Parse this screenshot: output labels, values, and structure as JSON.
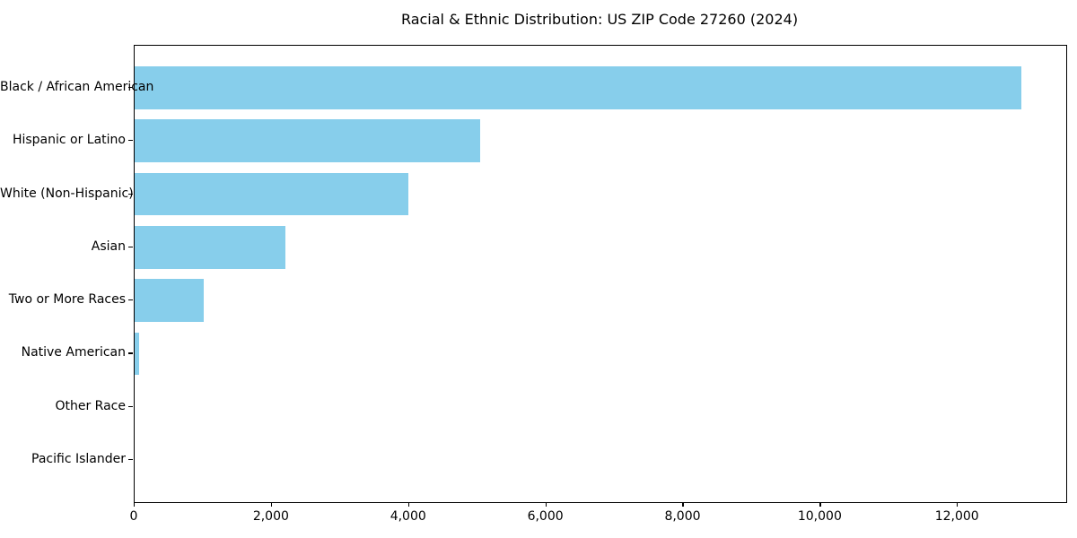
{
  "title": "Racial & Ethnic Distribution: US ZIP Code 27260 (2024)",
  "chart_data": {
    "type": "bar",
    "orientation": "horizontal",
    "title": "Racial & Ethnic Distribution: US ZIP Code 27260 (2024)",
    "xlabel": "",
    "ylabel": "",
    "categories": [
      "Black / African American",
      "Hispanic or Latino",
      "White (Non-Hispanic)",
      "Asian",
      "Two or More Races",
      "Native American",
      "Other Race",
      "Pacific Islander"
    ],
    "values": [
      12930,
      5040,
      3985,
      2200,
      1010,
      65,
      0,
      0
    ],
    "xlim": [
      0,
      13580
    ],
    "x_ticks": [
      0,
      2000,
      4000,
      6000,
      8000,
      10000,
      12000
    ],
    "x_tick_labels": [
      "0",
      "2,000",
      "4,000",
      "6,000",
      "8,000",
      "10,000",
      "12,000"
    ],
    "bar_color": "#87CEEB",
    "background_color": "#ffffff",
    "grid": false,
    "legend": false
  }
}
